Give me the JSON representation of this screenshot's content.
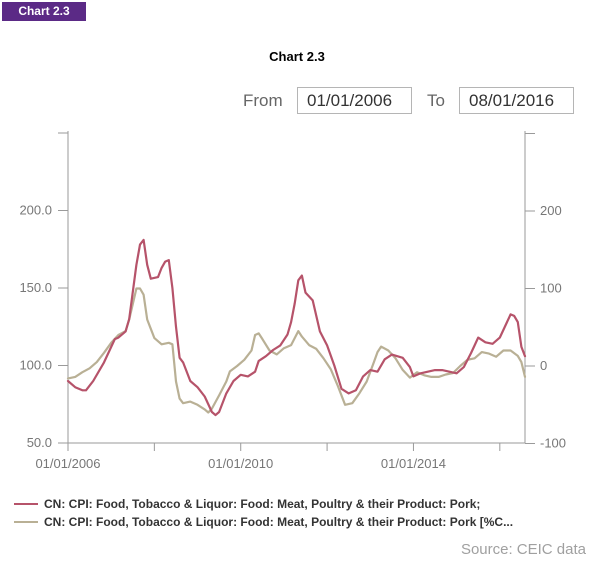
{
  "tag": "Chart 2.3",
  "controls": {
    "from_label": "From",
    "from_value": "01/01/2006",
    "to_label": "To",
    "to_value": "08/01/2016"
  },
  "source": "Source: CEIC data",
  "colors": {
    "series1": "#b6536a",
    "series2": "#b9b095",
    "axis": "#9a9a9a"
  },
  "chart_data": {
    "type": "line",
    "title": "Chart 2.3",
    "x_ticks": [
      "01/01/2006",
      "01/01/2010",
      "01/01/2014"
    ],
    "x_range": [
      "2006-01",
      "2016-08"
    ],
    "left_axis": {
      "ticks": [
        "50.0",
        "100.0",
        "150.0",
        "200.0"
      ],
      "range": [
        50,
        250
      ]
    },
    "right_axis": {
      "ticks": [
        "-100",
        "0",
        "100",
        "200"
      ],
      "range": [
        -100,
        300
      ]
    },
    "grid": false,
    "legend_position": "bottom",
    "series": [
      {
        "name": "CN: CPI: Food, Tobacco & Liquor: Food: Meat, Poultry & their Product: Pork;",
        "axis": "left",
        "points": [
          [
            "2006-01",
            90
          ],
          [
            "2006-03",
            86
          ],
          [
            "2006-05",
            84
          ],
          [
            "2006-06",
            84
          ],
          [
            "2006-08",
            90
          ],
          [
            "2006-11",
            102
          ],
          [
            "2007-02",
            117
          ],
          [
            "2007-03",
            118
          ],
          [
            "2007-05",
            122
          ],
          [
            "2007-06",
            130
          ],
          [
            "2007-08",
            165
          ],
          [
            "2007-09",
            178
          ],
          [
            "2007-10",
            181
          ],
          [
            "2007-11",
            165
          ],
          [
            "2007-12",
            156
          ],
          [
            "2008-02",
            157
          ],
          [
            "2008-03",
            163
          ],
          [
            "2008-04",
            167
          ],
          [
            "2008-05",
            168
          ],
          [
            "2008-06",
            150
          ],
          [
            "2008-07",
            125
          ],
          [
            "2008-08",
            105
          ],
          [
            "2008-09",
            102
          ],
          [
            "2008-11",
            90
          ],
          [
            "2009-01",
            86
          ],
          [
            "2009-03",
            80
          ],
          [
            "2009-05",
            70
          ],
          [
            "2009-06",
            68
          ],
          [
            "2009-07",
            70
          ],
          [
            "2009-09",
            82
          ],
          [
            "2009-11",
            90
          ],
          [
            "2010-01",
            94
          ],
          [
            "2010-03",
            93
          ],
          [
            "2010-05",
            96
          ],
          [
            "2010-06",
            103
          ],
          [
            "2010-08",
            106
          ],
          [
            "2010-10",
            110
          ],
          [
            "2010-12",
            113
          ],
          [
            "2011-02",
            120
          ],
          [
            "2011-03",
            128
          ],
          [
            "2011-04",
            140
          ],
          [
            "2011-05",
            155
          ],
          [
            "2011-06",
            158
          ],
          [
            "2011-07",
            147
          ],
          [
            "2011-09",
            142
          ],
          [
            "2011-11",
            122
          ],
          [
            "2012-01",
            113
          ],
          [
            "2012-03",
            100
          ],
          [
            "2012-05",
            85
          ],
          [
            "2012-07",
            82
          ],
          [
            "2012-09",
            84
          ],
          [
            "2012-11",
            93
          ],
          [
            "2013-01",
            97
          ],
          [
            "2013-03",
            96
          ],
          [
            "2013-05",
            104
          ],
          [
            "2013-07",
            107
          ],
          [
            "2013-10",
            105
          ],
          [
            "2013-12",
            99
          ],
          [
            "2014-01",
            93
          ],
          [
            "2014-03",
            95
          ],
          [
            "2014-05",
            96
          ],
          [
            "2014-07",
            97
          ],
          [
            "2014-09",
            97
          ],
          [
            "2014-11",
            96
          ],
          [
            "2015-01",
            95
          ],
          [
            "2015-03",
            99
          ],
          [
            "2015-05",
            108
          ],
          [
            "2015-06",
            113
          ],
          [
            "2015-07",
            118
          ],
          [
            "2015-09",
            115
          ],
          [
            "2015-11",
            114
          ],
          [
            "2016-01",
            118
          ],
          [
            "2016-03",
            128
          ],
          [
            "2016-04",
            133
          ],
          [
            "2016-05",
            132
          ],
          [
            "2016-06",
            128
          ],
          [
            "2016-07",
            112
          ],
          [
            "2016-08",
            106
          ]
        ]
      },
      {
        "name": "CN: CPI: Food, Tobacco & Liquor: Food: Meat, Poultry & their Product: Pork [%C...",
        "axis": "right",
        "points": [
          [
            "2006-01",
            -16
          ],
          [
            "2006-03",
            -14
          ],
          [
            "2006-05",
            -8
          ],
          [
            "2006-07",
            -3
          ],
          [
            "2006-09",
            5
          ],
          [
            "2006-11",
            17
          ],
          [
            "2007-01",
            30
          ],
          [
            "2007-03",
            40
          ],
          [
            "2007-05",
            45
          ],
          [
            "2007-06",
            60
          ],
          [
            "2007-08",
            100
          ],
          [
            "2007-09",
            100
          ],
          [
            "2007-10",
            92
          ],
          [
            "2007-11",
            60
          ],
          [
            "2007-12",
            48
          ],
          [
            "2008-01",
            36
          ],
          [
            "2008-03",
            28
          ],
          [
            "2008-05",
            30
          ],
          [
            "2008-06",
            28
          ],
          [
            "2008-07",
            -20
          ],
          [
            "2008-08",
            -42
          ],
          [
            "2008-09",
            -48
          ],
          [
            "2008-11",
            -46
          ],
          [
            "2009-01",
            -50
          ],
          [
            "2009-03",
            -56
          ],
          [
            "2009-04",
            -60
          ],
          [
            "2009-05",
            -55
          ],
          [
            "2009-07",
            -38
          ],
          [
            "2009-09",
            -20
          ],
          [
            "2009-10",
            -7
          ],
          [
            "2009-12",
            0
          ],
          [
            "2010-02",
            8
          ],
          [
            "2010-04",
            20
          ],
          [
            "2010-05",
            40
          ],
          [
            "2010-06",
            42
          ],
          [
            "2010-07",
            35
          ],
          [
            "2010-09",
            20
          ],
          [
            "2010-11",
            15
          ],
          [
            "2011-01",
            23
          ],
          [
            "2011-03",
            27
          ],
          [
            "2011-04",
            36
          ],
          [
            "2011-05",
            45
          ],
          [
            "2011-06",
            38
          ],
          [
            "2011-08",
            27
          ],
          [
            "2011-10",
            22
          ],
          [
            "2011-12",
            10
          ],
          [
            "2012-02",
            -4
          ],
          [
            "2012-04",
            -26
          ],
          [
            "2012-06",
            -50
          ],
          [
            "2012-08",
            -48
          ],
          [
            "2012-10",
            -35
          ],
          [
            "2012-12",
            -20
          ],
          [
            "2013-02",
            5
          ],
          [
            "2013-03",
            18
          ],
          [
            "2013-04",
            25
          ],
          [
            "2013-06",
            20
          ],
          [
            "2013-08",
            10
          ],
          [
            "2013-10",
            -5
          ],
          [
            "2013-12",
            -15
          ],
          [
            "2014-02",
            -8
          ],
          [
            "2014-04",
            -12
          ],
          [
            "2014-06",
            -14
          ],
          [
            "2014-08",
            -14
          ],
          [
            "2014-10",
            -11
          ],
          [
            "2014-12",
            -9
          ],
          [
            "2015-02",
            0
          ],
          [
            "2015-04",
            8
          ],
          [
            "2015-06",
            10
          ],
          [
            "2015-08",
            18
          ],
          [
            "2015-10",
            16
          ],
          [
            "2015-12",
            12
          ],
          [
            "2016-02",
            20
          ],
          [
            "2016-04",
            20
          ],
          [
            "2016-06",
            13
          ],
          [
            "2016-07",
            5
          ],
          [
            "2016-08",
            -14
          ]
        ]
      }
    ]
  }
}
